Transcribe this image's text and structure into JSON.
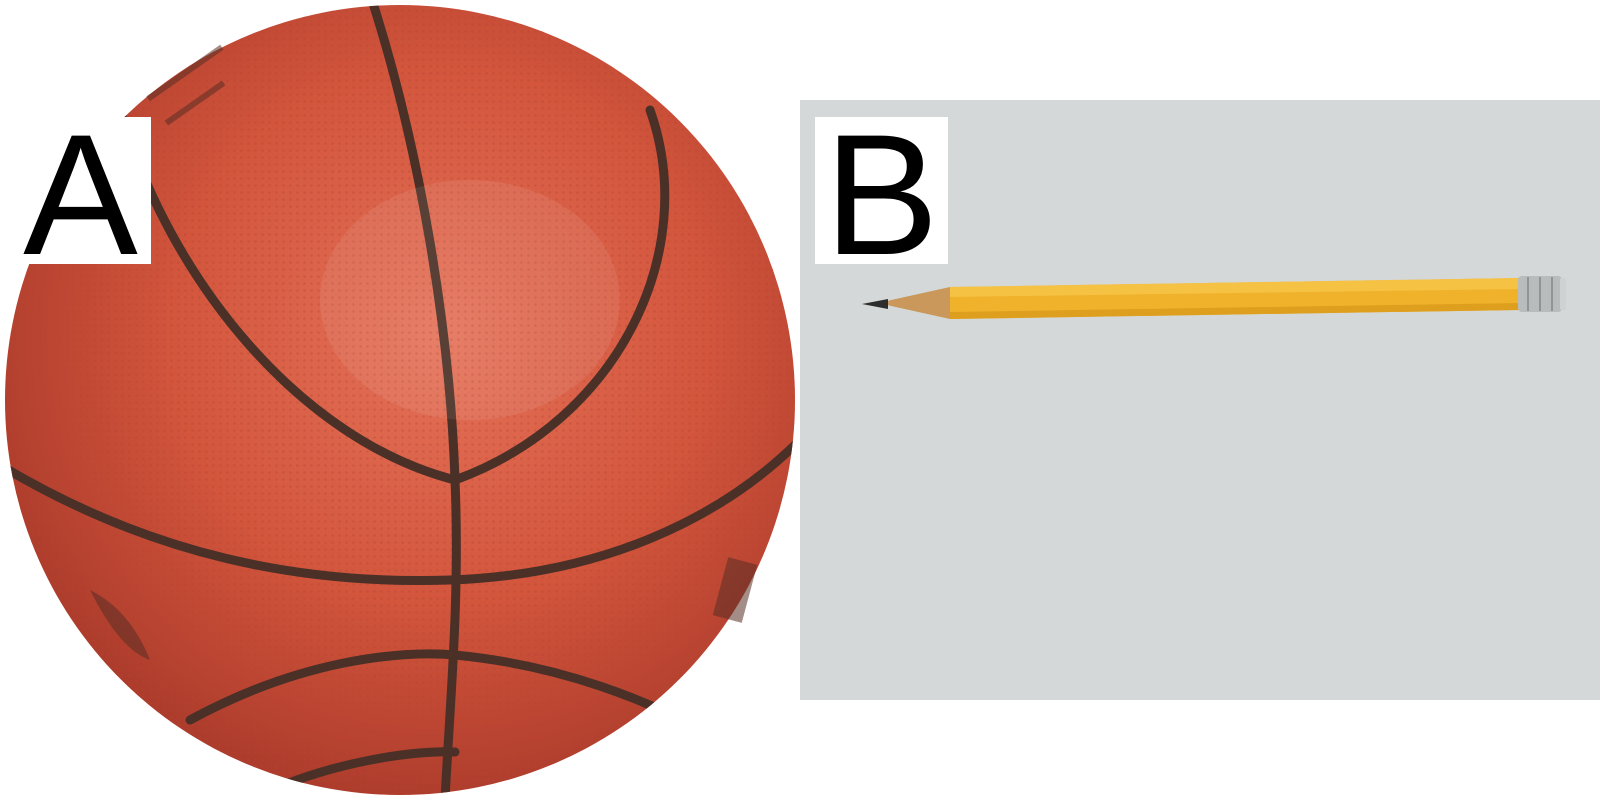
{
  "panels": [
    {
      "label": "A",
      "subject": "basketball",
      "colors": {
        "leather": "#d2553c",
        "leather_dark": "#a9392a",
        "seam": "#4b3027"
      }
    },
    {
      "label": "B",
      "subject": "pencil",
      "colors": {
        "background": "#d5d8d8",
        "body": "#f0b22b",
        "wood": "#c9985a",
        "lead": "#2d2d2d",
        "ferrule": "#b8bcbc"
      }
    }
  ]
}
